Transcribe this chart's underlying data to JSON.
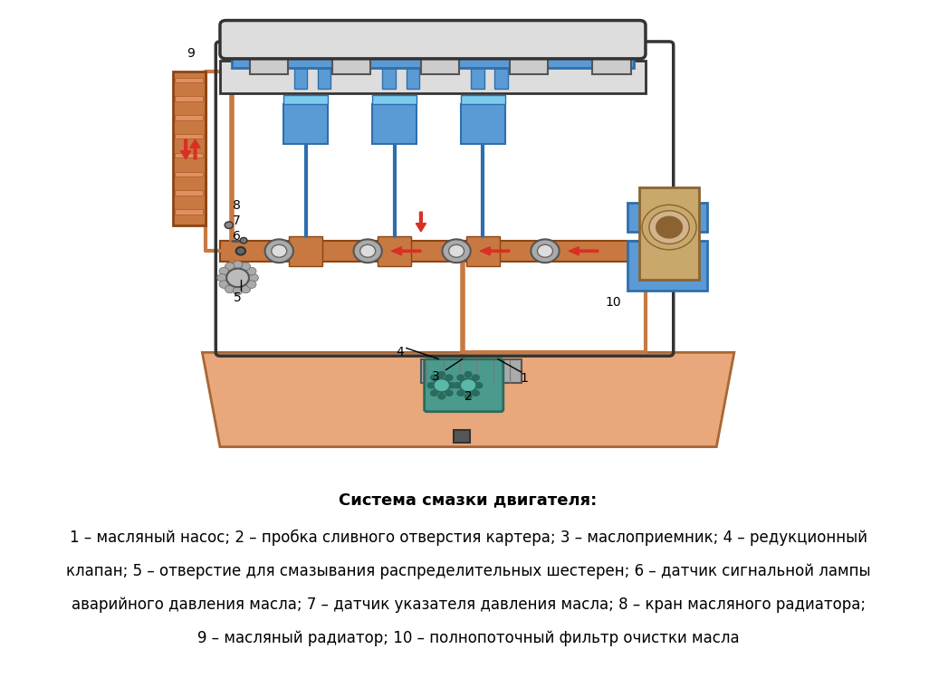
{
  "background_color": "#ffffff",
  "title": "Система смазки двигателя:",
  "title_fontsize": 13,
  "title_bold": true,
  "caption_lines": [
    "1 – масляный насос; 2 – пробка сливного отверстия картера; 3 – маслоприемник; 4 – редукционный",
    "клапан; 5 – отверстие для смазывания распределительных шестерен; 6 – датчик сигнальной лампы",
    "аварийного давления масла; 7 – датчик указателя давления масла; 8 – кран масляного радиатора;",
    "9 – масляный радиатор; 10 – полнопоточный фильтр очистки масла"
  ],
  "caption_fontsize": 12
}
